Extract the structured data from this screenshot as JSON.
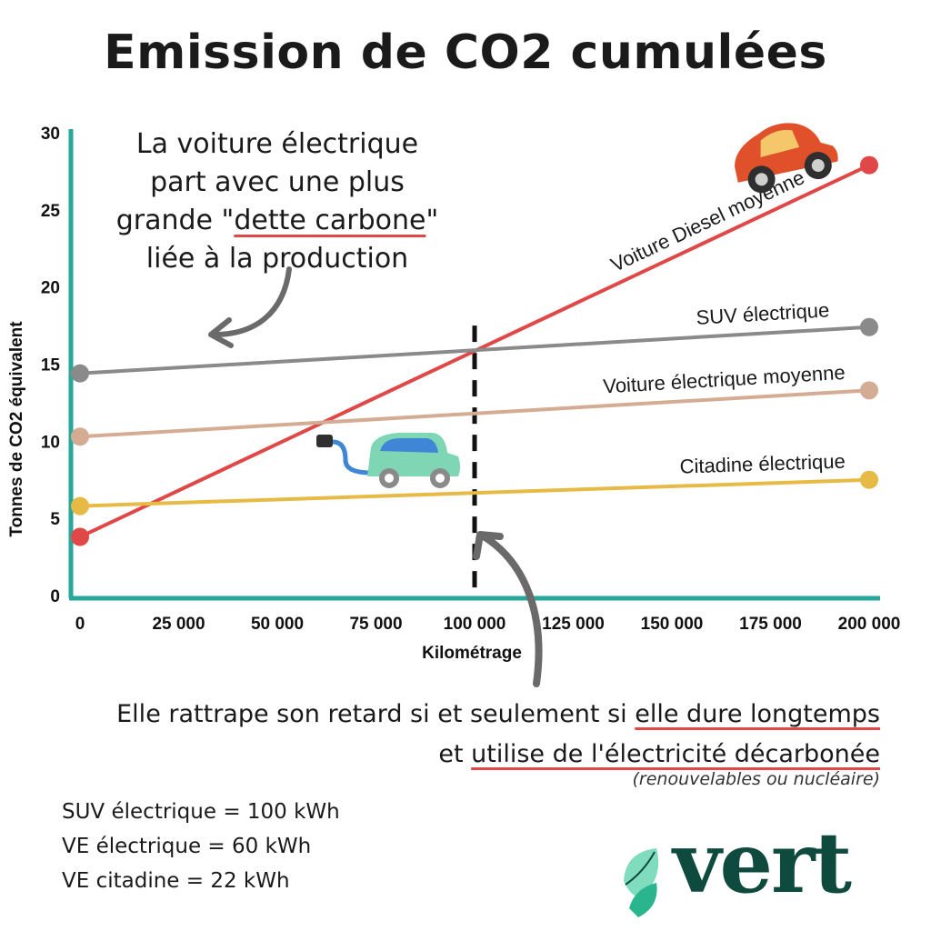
{
  "header": {
    "title": "Emission de CO2 cumulées"
  },
  "annotations": {
    "top_note_1": "La voiture électrique",
    "top_note_2": "part avec une plus",
    "top_note_3_pre": "grande \"",
    "top_note_3_underlined": "dette carbone",
    "top_note_3_post": "\"",
    "top_note_4": "liée à la production",
    "bottom_note_1_pre": "Elle rattrape son retard si et seulement si ",
    "bottom_note_1_underlined": "elle dure longtemps",
    "bottom_note_2_pre": "et ",
    "bottom_note_2_underlined": "utilise de l'électricité décarbonée",
    "bottom_note_sub": "(renouvelables ou nucléaire)"
  },
  "specs": [
    "SUV électrique = 100 kWh",
    "VE électrique = 60 kWh",
    "VE citadine = 22 kWh"
  ],
  "brand": {
    "wordmark": "vert",
    "word_color": "#0f4a3f",
    "leaf_colors": [
      "#2bb58e",
      "#7fdcbc"
    ]
  },
  "icons": [
    "diesel-car-icon",
    "electric-car-icon",
    "leaf-logo-icon"
  ],
  "chart_data": {
    "type": "line",
    "title": "Emission de CO2 cumulées",
    "xlabel": "Kilométrage",
    "ylabel": "Tonnes de CO2 équivalent",
    "xlim": [
      0,
      200000
    ],
    "ylim": [
      0,
      30
    ],
    "xticks": [
      0,
      25000,
      50000,
      75000,
      100000,
      125000,
      150000,
      175000,
      200000
    ],
    "xtick_labels": [
      "0",
      "25 000",
      "50 000",
      "75 000",
      "100 000",
      "125 000",
      "150 000",
      "175 000",
      "200 000"
    ],
    "yticks": [
      0,
      5,
      10,
      15,
      20,
      25,
      30
    ],
    "ytick_labels": [
      "0",
      "5",
      "10",
      "15",
      "20",
      "25",
      "30"
    ],
    "axis_color": "#2aa79b",
    "grid": false,
    "vertical_marker_x": 100000,
    "series": [
      {
        "name": "Voiture Diesel moyenne",
        "color": "#e04848",
        "x": [
          0,
          200000
        ],
        "y": [
          3.8,
          27.9
        ]
      },
      {
        "name": "SUV électrique",
        "color": "#8a8a8a",
        "x": [
          0,
          200000
        ],
        "y": [
          14.4,
          17.4
        ]
      },
      {
        "name": "Voiture électrique moyenne",
        "color": "#d4ac94",
        "x": [
          0,
          200000
        ],
        "y": [
          10.3,
          13.3
        ]
      },
      {
        "name": "Citadine électrique",
        "color": "#e6ba45",
        "x": [
          0,
          200000
        ],
        "y": [
          5.8,
          7.5
        ]
      }
    ]
  }
}
